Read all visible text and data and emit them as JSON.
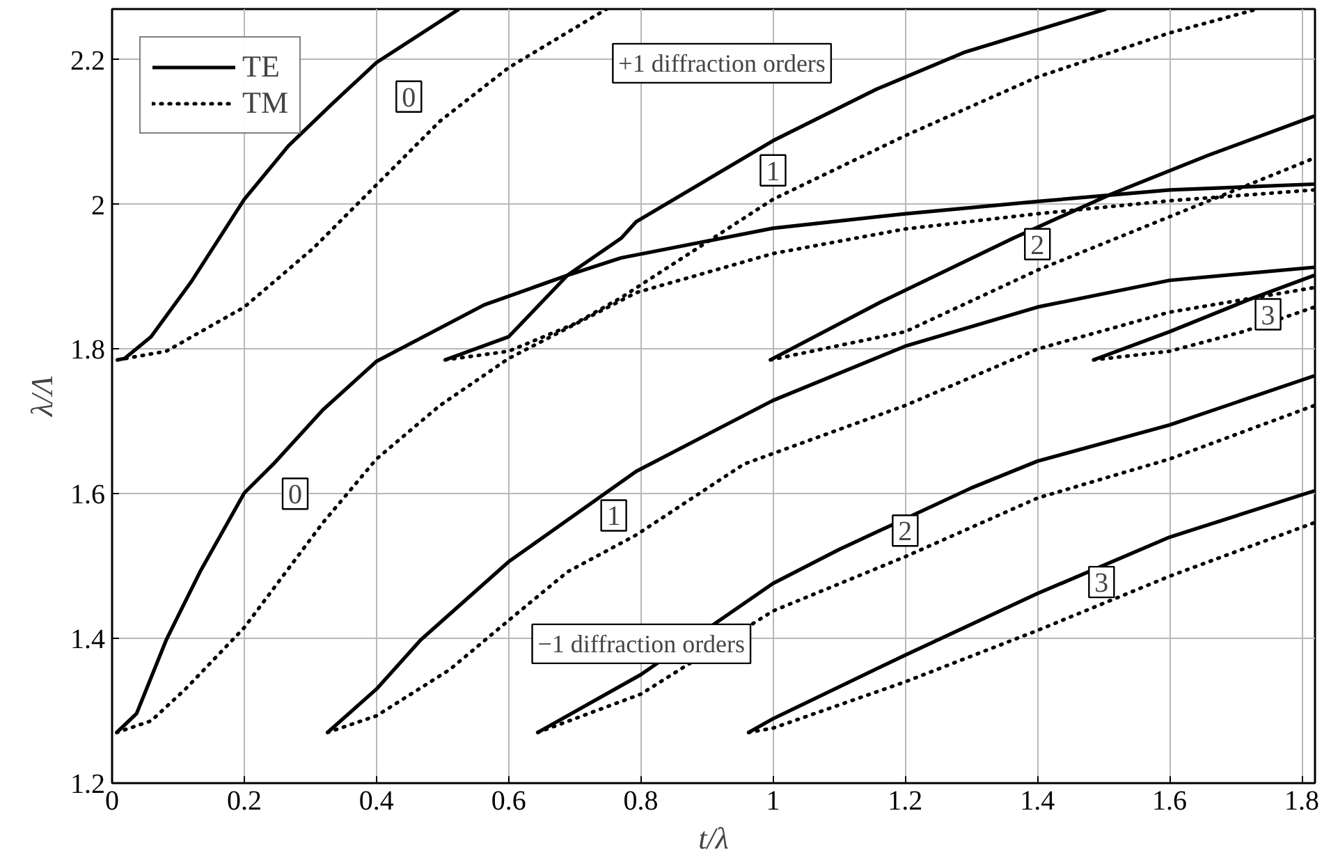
{
  "chart_data": {
    "type": "line",
    "xlabel": "t/λ",
    "ylabel": "λ/Λ",
    "xlim": [
      0,
      1.82
    ],
    "ylim": [
      1.2,
      2.27
    ],
    "xticks": [
      0,
      0.2,
      0.4,
      0.6,
      0.8,
      1,
      1.2,
      1.4,
      1.6,
      1.8
    ],
    "yticks": [
      1.2,
      1.4,
      1.6,
      1.8,
      2,
      2.2
    ],
    "grid": true,
    "legend": "top left",
    "series": [
      {
        "name": "TE",
        "color": "#000000",
        "line_style": "solid",
        "x": [
          0.008,
          0.019,
          0.059,
          0.119,
          0.2,
          0.267,
          0.333,
          0.4,
          0.525
        ],
        "values": [
          1.785,
          1.787,
          1.817,
          1.892,
          2.007,
          2.081,
          2.139,
          2.196,
          2.27
        ]
      },
      {
        "name": "TM",
        "color": "#000000",
        "line_style": "dotted",
        "x": [
          0.008,
          0.082,
          0.2,
          0.304,
          0.4,
          0.496,
          0.6,
          0.748
        ],
        "values": [
          1.785,
          1.797,
          1.858,
          1.939,
          2.027,
          2.115,
          2.189,
          2.27
        ]
      },
      {
        "color": "#000000",
        "line_style": "solid",
        "x": [
          0.504,
          0.6,
          0.689,
          0.77,
          0.793,
          1.0,
          1.156,
          1.289,
          1.504
        ],
        "values": [
          1.785,
          1.817,
          1.902,
          1.953,
          1.976,
          2.088,
          2.159,
          2.21,
          2.27
        ]
      },
      {
        "color": "#000000",
        "line_style": "dotted",
        "x": [
          0.504,
          0.6,
          0.7,
          0.77,
          1.0,
          1.2,
          1.4,
          1.6,
          1.733
        ],
        "values": [
          1.785,
          1.797,
          1.835,
          1.871,
          2.007,
          2.095,
          2.176,
          2.237,
          2.27
        ]
      },
      {
        "color": "#000000",
        "line_style": "solid",
        "x": [
          0.996,
          1.163,
          1.363,
          1.511,
          1.659,
          1.819
        ],
        "values": [
          1.785,
          1.865,
          1.953,
          2.014,
          2.068,
          2.122
        ]
      },
      {
        "color": "#000000",
        "line_style": "dotted",
        "x": [
          0.996,
          1.2,
          1.4,
          1.6,
          1.819
        ],
        "values": [
          1.785,
          1.824,
          1.909,
          1.983,
          2.064
        ]
      },
      {
        "color": "#000000",
        "line_style": "solid",
        "x": [
          1.485,
          1.6,
          1.719,
          1.819
        ],
        "values": [
          1.785,
          1.824,
          1.868,
          1.902
        ]
      },
      {
        "color": "#000000",
        "line_style": "dotted",
        "x": [
          1.485,
          1.6,
          1.711,
          1.819
        ],
        "values": [
          1.785,
          1.797,
          1.824,
          1.858
        ]
      },
      {
        "color": "#000000",
        "line_style": "solid",
        "x": [
          0.007,
          0.037,
          0.082,
          0.133,
          0.2,
          0.244,
          0.319,
          0.4,
          0.563,
          0.689,
          0.77,
          1.0,
          1.2,
          1.4,
          1.6,
          1.819
        ],
        "values": [
          1.27,
          1.296,
          1.398,
          1.492,
          1.601,
          1.641,
          1.716,
          1.783,
          1.861,
          1.902,
          1.926,
          1.967,
          1.987,
          2.004,
          2.02,
          2.028
        ]
      },
      {
        "color": "#000000",
        "line_style": "dotted",
        "x": [
          0.007,
          0.059,
          0.111,
          0.2,
          0.319,
          0.4,
          0.496,
          0.6,
          0.793,
          1.0,
          1.2,
          1.4,
          1.6,
          1.819
        ],
        "values": [
          1.27,
          1.286,
          1.33,
          1.415,
          1.56,
          1.648,
          1.722,
          1.787,
          1.878,
          1.932,
          1.966,
          1.987,
          2.005,
          2.02
        ]
      },
      {
        "color": "#000000",
        "line_style": "solid",
        "x": [
          0.326,
          0.4,
          0.467,
          0.6,
          0.793,
          1.0,
          1.2,
          1.4,
          1.6,
          1.819
        ],
        "values": [
          1.27,
          1.33,
          1.398,
          1.506,
          1.631,
          1.729,
          1.804,
          1.858,
          1.895,
          1.913
        ]
      },
      {
        "color": "#000000",
        "line_style": "dotted",
        "x": [
          0.326,
          0.4,
          0.511,
          0.6,
          0.689,
          0.793,
          0.956,
          1.2,
          1.4,
          1.6,
          1.819
        ],
        "values": [
          1.27,
          1.293,
          1.357,
          1.425,
          1.492,
          1.543,
          1.641,
          1.722,
          1.8,
          1.851,
          1.885
        ]
      },
      {
        "color": "#000000",
        "line_style": "solid",
        "x": [
          0.644,
          0.8,
          1.0,
          1.1,
          1.3,
          1.4,
          1.6,
          1.819
        ],
        "values": [
          1.27,
          1.35,
          1.476,
          1.523,
          1.608,
          1.645,
          1.695,
          1.763
        ]
      },
      {
        "color": "#000000",
        "line_style": "dotted",
        "x": [
          0.644,
          0.8,
          1.0,
          1.2,
          1.4,
          1.6,
          1.819
        ],
        "values": [
          1.27,
          1.323,
          1.438,
          1.513,
          1.594,
          1.648,
          1.722
        ]
      },
      {
        "color": "#000000",
        "line_style": "solid",
        "x": [
          0.963,
          1.0,
          1.2,
          1.4,
          1.6,
          1.819
        ],
        "values": [
          1.27,
          1.289,
          1.377,
          1.462,
          1.54,
          1.604
        ]
      },
      {
        "color": "#000000",
        "line_style": "dotted",
        "x": [
          0.963,
          1.0,
          1.2,
          1.4,
          1.6,
          1.819
        ],
        "values": [
          1.27,
          1.276,
          1.34,
          1.411,
          1.486,
          1.56
        ]
      }
    ],
    "annotations": [
      {
        "text": "0",
        "x": 0.449,
        "y": 2.149
      },
      "+1 diffraction orders",
      {
        "text": "1",
        "x": 1.0,
        "y": 2.047
      },
      {
        "text": "2",
        "x": 1.4,
        "y": 1.945
      },
      {
        "text": "3",
        "x": 1.749,
        "y": 1.848
      },
      {
        "text": "0",
        "x": 0.277,
        "y": 1.6
      },
      {
        "text": "1",
        "x": 0.759,
        "y": 1.57
      },
      "−1 diffraction orders",
      {
        "text": "2",
        "x": 1.2,
        "y": 1.549
      },
      {
        "text": "3",
        "x": 1.497,
        "y": 1.478
      }
    ]
  }
}
